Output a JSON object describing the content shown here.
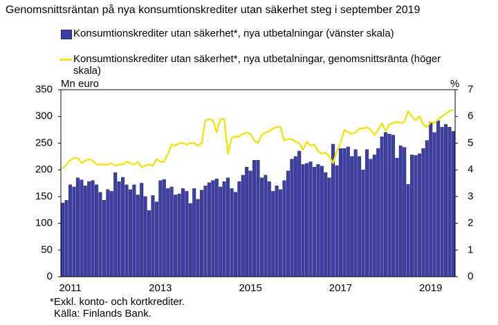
{
  "chart_data": {
    "type": "bar-line",
    "title": "Genomsnittsräntan på nya konsumtionskrediter utan säkerhet steg i september 2019",
    "y_label": "Mn euro",
    "y2_label": "%",
    "notes": [
      "*Exkl. konto- och kortkrediter.",
      "Källa: Finlands Bank."
    ],
    "categories": [
      null,
      null,
      "2011",
      null,
      null,
      null,
      null,
      null,
      null,
      null,
      null,
      null,
      null,
      null,
      null,
      null,
      null,
      null,
      null,
      null,
      null,
      null,
      null,
      null,
      null,
      null,
      "2013",
      null,
      null,
      null,
      null,
      null,
      null,
      null,
      null,
      null,
      null,
      null,
      null,
      null,
      null,
      null,
      null,
      null,
      null,
      null,
      null,
      null,
      null,
      null,
      "2015",
      null,
      null,
      null,
      null,
      null,
      null,
      null,
      null,
      null,
      null,
      null,
      null,
      null,
      null,
      null,
      null,
      null,
      null,
      null,
      null,
      null,
      null,
      null,
      "2017",
      null,
      null,
      null,
      null,
      null,
      null,
      null,
      null,
      null,
      null,
      null,
      null,
      null,
      null,
      null,
      null,
      null,
      null,
      null,
      null,
      null,
      null,
      null,
      "2019",
      null,
      null,
      null,
      null,
      null,
      null
    ],
    "series": [
      {
        "name": "Konsumtionskrediter utan säkerhet*, nya utbetalningar (vänster skala)",
        "type": "bar",
        "color": "#3d3fa3",
        "values": [
          138,
          143,
          172,
          168,
          185,
          181,
          170,
          178,
          180,
          172,
          158,
          143,
          163,
          160,
          195,
          178,
          186,
          172,
          163,
          172,
          153,
          175,
          150,
          124,
          152,
          140,
          180,
          182,
          165,
          168,
          153,
          155,
          165,
          160,
          137,
          165,
          145,
          162,
          170,
          176,
          180,
          183,
          168,
          178,
          185,
          165,
          158,
          178,
          190,
          205,
          198,
          218,
          218,
          185,
          190,
          178,
          160,
          170,
          163,
          180,
          198,
          220,
          225,
          235,
          210,
          212,
          215,
          205,
          210,
          207,
          195,
          185,
          248,
          208,
          240,
          240,
          243,
          225,
          238,
          225,
          200,
          238,
          220,
          228,
          240,
          262,
          270,
          267,
          265,
          222,
          245,
          242,
          173,
          228,
          227,
          230,
          240,
          255,
          290,
          270,
          292,
          280,
          285,
          280,
          272
        ]
      },
      {
        "name": "Konsumtionskrediter utan säkerhet*, nya utbetalningar, genomsnittsränta (höger skala)",
        "type": "line",
        "axis": "y2",
        "color": "#f2e21c",
        "values": [
          4.05,
          4.2,
          4.35,
          4.45,
          4.45,
          4.25,
          4.35,
          4.4,
          4.35,
          4.2,
          4.2,
          4.2,
          4.2,
          4.25,
          4.15,
          4.2,
          4.2,
          4.3,
          4.25,
          4.2,
          4.3,
          4.1,
          4.15,
          4.2,
          4.15,
          4.4,
          4.3,
          4.3,
          4.6,
          4.95,
          4.9,
          5.0,
          5.0,
          4.95,
          5.0,
          5.0,
          4.9,
          5.0,
          5.85,
          5.9,
          5.85,
          5.4,
          5.9,
          5.9,
          4.6,
          5.2,
          5.25,
          5.25,
          5.35,
          5.4,
          5.35,
          5.1,
          5.0,
          5.3,
          5.4,
          5.45,
          5.55,
          5.6,
          5.6,
          5.1,
          5.15,
          5.15,
          5.05,
          5.0,
          4.75,
          5.05,
          4.9,
          4.95,
          4.7,
          4.6,
          4.65,
          4.5,
          4.25,
          4.7,
          5.0,
          5.5,
          5.4,
          5.35,
          5.4,
          5.55,
          5.55,
          5.6,
          5.5,
          5.3,
          5.5,
          5.75,
          5.45,
          5.7,
          5.75,
          5.8,
          5.75,
          5.8,
          6.2,
          6.0,
          5.85,
          6.0,
          5.7,
          5.6,
          5.8,
          5.75,
          5.9,
          6.0,
          6.1,
          6.2,
          6.25
        ]
      }
    ],
    "ylim": [
      0,
      350
    ],
    "yticks": [
      0,
      50,
      100,
      150,
      200,
      250,
      300,
      350
    ],
    "y2lim": [
      0,
      7
    ],
    "y2ticks": [
      0,
      1,
      2,
      3,
      4,
      5,
      6,
      7
    ]
  }
}
